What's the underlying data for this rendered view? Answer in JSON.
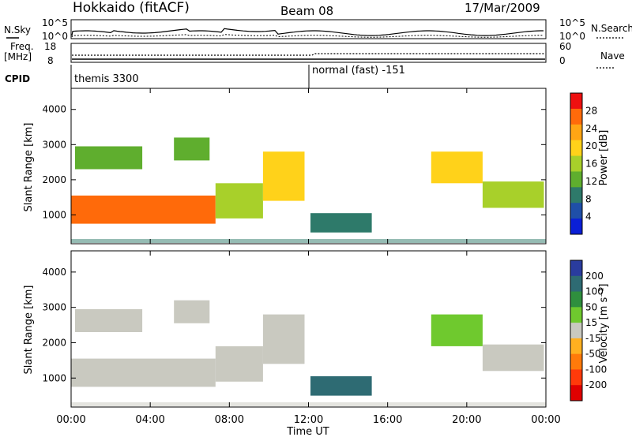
{
  "header": {
    "station": "Hokkaido (fitACF)",
    "beam": "Beam 08",
    "date": "17/Mar/2009"
  },
  "noise_panel": {
    "left_label": "N.Sky",
    "right_label": "N.Search",
    "left_ticks": [
      "10^5",
      "10^0"
    ],
    "right_ticks": [
      "10^5",
      "10^0"
    ]
  },
  "freq_panel": {
    "left_label_1": "Freq.",
    "left_label_2": "[MHz]",
    "left_ticks": [
      "18",
      "8"
    ],
    "right_label": "Nave",
    "right_ticks": [
      "60",
      "0"
    ]
  },
  "cpid_panel": {
    "label": "CPID",
    "segments": [
      {
        "start_hour": 0,
        "text": "themis 3300"
      },
      {
        "start_hour": 12,
        "text": "normal (fast) -151"
      }
    ]
  },
  "colors": {
    "power_scale": [
      "#0a1fd6",
      "#1f4fa8",
      "#2e7a6a",
      "#5fae2e",
      "#a8d02a",
      "#ffd21a",
      "#ffa514",
      "#ff6a0a",
      "#ee1010"
    ],
    "velocity_scale": [
      "#2a3c9e",
      "#2e6b73",
      "#2f8f3e",
      "#6fc92e",
      "#c9c9c0",
      "#ffb020",
      "#ff7a0a",
      "#ff3a0a",
      "#e00000"
    ]
  },
  "chart_data": [
    {
      "type": "heatmap",
      "quantity": "power",
      "ylabel": "Slant Range [km]",
      "xlabel": "Time UT",
      "xlim_hours": [
        0,
        24
      ],
      "ylim_km": [
        180,
        4600
      ],
      "x_ticks": [
        "00:00",
        "04:00",
        "08:00",
        "12:00",
        "16:00",
        "20:00",
        "00:00"
      ],
      "y_ticks": [
        1000,
        2000,
        3000,
        4000
      ],
      "colorbar": {
        "label": "Power [dB]",
        "range": [
          0,
          32
        ],
        "ticks": [
          4,
          8,
          12,
          16,
          20,
          24,
          28
        ]
      },
      "echo_regions": [
        {
          "t0": 0.0,
          "t1": 7.3,
          "r0": 750,
          "r1": 1550,
          "value": 26
        },
        {
          "t0": 7.3,
          "t1": 9.7,
          "r0": 900,
          "r1": 1900,
          "value": 16
        },
        {
          "t0": 9.7,
          "t1": 11.8,
          "r0": 1400,
          "r1": 2800,
          "value": 20
        },
        {
          "t0": 0.2,
          "t1": 3.6,
          "r0": 2300,
          "r1": 2950,
          "value": 12
        },
        {
          "t0": 5.2,
          "t1": 7.0,
          "r0": 2550,
          "r1": 3200,
          "value": 14
        },
        {
          "t0": 12.1,
          "t1": 15.2,
          "r0": 500,
          "r1": 1050,
          "value": 10
        },
        {
          "t0": 18.2,
          "t1": 20.8,
          "r0": 1900,
          "r1": 2800,
          "value": 20
        },
        {
          "t0": 20.8,
          "t1": 23.9,
          "r0": 1200,
          "r1": 1950,
          "value": 16
        }
      ]
    },
    {
      "type": "heatmap",
      "quantity": "velocity",
      "ylabel": "Slant Range [km]",
      "xlabel": "Time UT",
      "xlim_hours": [
        0,
        24
      ],
      "ylim_km": [
        180,
        4600
      ],
      "x_ticks": [
        "00:00",
        "04:00",
        "08:00",
        "12:00",
        "16:00",
        "20:00",
        "00:00"
      ],
      "y_ticks": [
        1000,
        2000,
        3000,
        4000
      ],
      "colorbar": {
        "label": "Velocity [m s⁻¹]",
        "range": [
          -250,
          250
        ],
        "ticks": [
          200,
          100,
          50,
          15,
          -15,
          -50,
          -100,
          -200
        ]
      },
      "echo_regions": [
        {
          "t0": 0.0,
          "t1": 7.3,
          "r0": 750,
          "r1": 1550,
          "value": 0
        },
        {
          "t0": 7.3,
          "t1": 9.7,
          "r0": 900,
          "r1": 1900,
          "value": 0
        },
        {
          "t0": 9.7,
          "t1": 11.8,
          "r0": 1400,
          "r1": 2800,
          "value": 0
        },
        {
          "t0": 0.2,
          "t1": 3.6,
          "r0": 2300,
          "r1": 2950,
          "value": 0
        },
        {
          "t0": 5.2,
          "t1": 7.0,
          "r0": 2550,
          "r1": 3200,
          "value": 0
        },
        {
          "t0": 12.1,
          "t1": 15.2,
          "r0": 500,
          "r1": 1050,
          "value": 150
        },
        {
          "t0": 18.2,
          "t1": 20.8,
          "r0": 1900,
          "r1": 2800,
          "value": 40
        },
        {
          "t0": 20.8,
          "t1": 23.9,
          "r0": 1200,
          "r1": 1950,
          "value": 0
        }
      ]
    }
  ]
}
